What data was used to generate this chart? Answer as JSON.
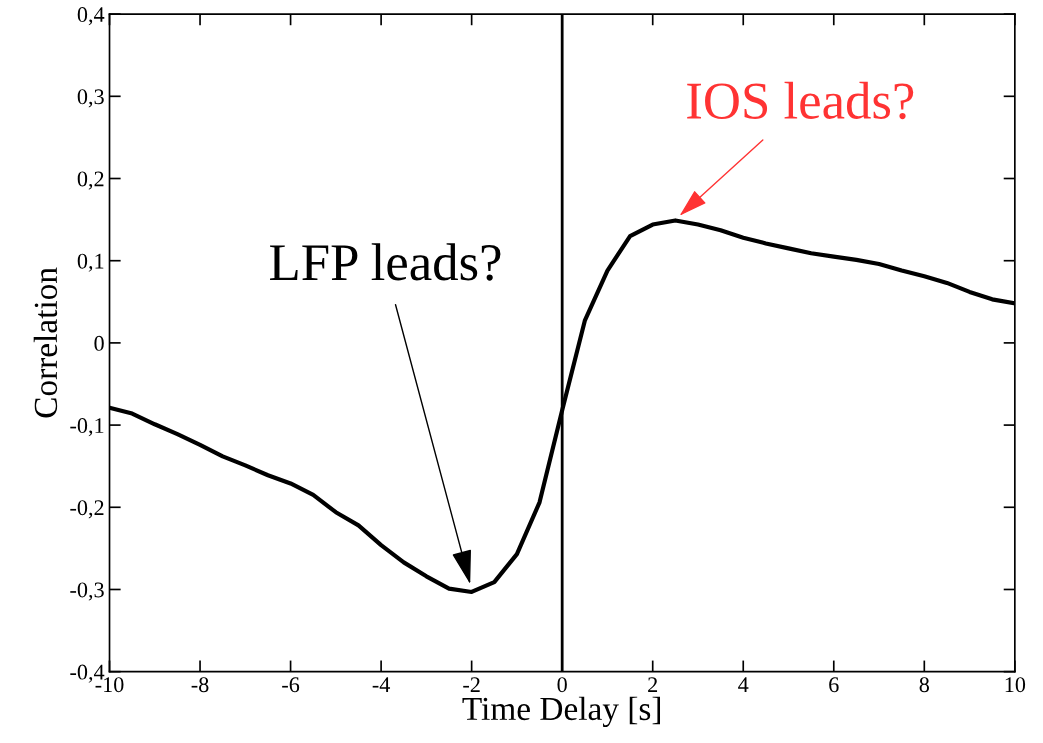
{
  "chart_data": {
    "type": "line",
    "xlabel": "Time Delay [s]",
    "ylabel": "Correlation",
    "x": [
      -10,
      -9.5,
      -9,
      -8.5,
      -8,
      -7.5,
      -7,
      -6.5,
      -6,
      -5.5,
      -5,
      -4.5,
      -4,
      -3.5,
      -3,
      -2.5,
      -2,
      -1.5,
      -1,
      -0.5,
      0,
      0.5,
      1,
      1.5,
      2,
      2.5,
      3,
      3.5,
      4,
      4.5,
      5,
      5.5,
      6,
      6.5,
      7,
      7.5,
      8,
      8.5,
      9,
      9.5,
      10
    ],
    "series": [
      {
        "color": "#000000",
        "values": [
          -0.079,
          -0.086,
          -0.099,
          -0.111,
          -0.124,
          -0.138,
          -0.149,
          -0.161,
          -0.171,
          -0.185,
          -0.206,
          -0.222,
          -0.246,
          -0.267,
          -0.284,
          -0.299,
          -0.303,
          -0.291,
          -0.257,
          -0.194,
          -0.082,
          0.027,
          0.088,
          0.13,
          0.144,
          0.149,
          0.144,
          0.137,
          0.128,
          0.121,
          0.115,
          0.109,
          0.105,
          0.101,
          0.096,
          0.088,
          0.081,
          0.073,
          0.062,
          0.053,
          0.048
        ]
      }
    ],
    "xlim": [
      -10,
      10
    ],
    "xticks": [
      -10,
      -8,
      -6,
      -4,
      -2,
      0,
      2,
      4,
      6,
      8,
      10
    ],
    "ylim": [
      -0.4,
      0.4
    ],
    "yticks": [
      {
        "value": -0.4,
        "label": "-0,4"
      },
      {
        "value": -0.3,
        "label": "-0,3"
      },
      {
        "value": -0.2,
        "label": "-0,2"
      },
      {
        "value": -0.1,
        "label": "-0,1"
      },
      {
        "value": 0,
        "label": "0"
      },
      {
        "value": 0.1,
        "label": "0,1"
      },
      {
        "value": 0.2,
        "label": "0,2"
      },
      {
        "value": 0.3,
        "label": "0,3"
      },
      {
        "value": 0.4,
        "label": "0,4"
      }
    ],
    "ref_lines": [
      {
        "axis": "x",
        "value": 0,
        "color": "#000000"
      }
    ],
    "annotations": [
      {
        "text": "LFP leads?",
        "x": -2,
        "y": -0.3
      },
      {
        "text": "IOS leads?",
        "x": 2.5,
        "y": 0.15
      }
    ],
    "grid": false,
    "marker": "none",
    "line_style": "solid"
  }
}
